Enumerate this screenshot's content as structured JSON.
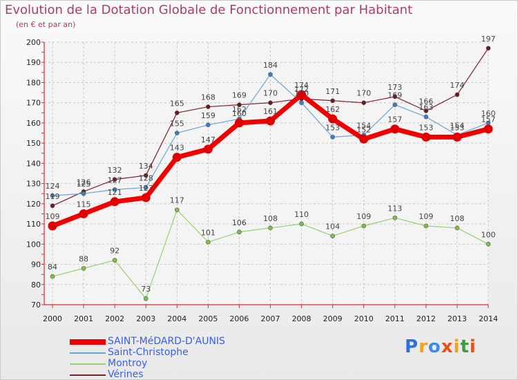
{
  "header": {
    "title": "Evolution de la Dotation Globale de Fonctionnement par Habitant",
    "subtitle": "(en € et par an)"
  },
  "logo": {
    "text": "Proxiti",
    "colors": [
      "#2f6fe0",
      "#f2a11d",
      "#3a8ee8",
      "#e8501e",
      "#f2a11d",
      "#3a9e3a",
      "#e8501e"
    ]
  },
  "chart_data": {
    "type": "line",
    "x": [
      "2000",
      "2001",
      "2002",
      "2003",
      "2004",
      "2005",
      "2006",
      "2007",
      "2008",
      "2009",
      "2010",
      "2011",
      "2012",
      "2013",
      "2014"
    ],
    "ylim": [
      70,
      200
    ],
    "yticks": [
      70,
      80,
      90,
      100,
      110,
      120,
      130,
      140,
      150,
      160,
      170,
      180,
      190,
      200
    ],
    "grid": true,
    "series": [
      {
        "name": "Vérines",
        "color": "#7a1f2b",
        "marker": "#6b1820",
        "width": 1.2,
        "values": [
          119,
          126,
          132,
          134,
          165,
          168,
          169,
          170,
          172,
          171,
          170,
          173,
          166,
          174,
          197
        ]
      },
      {
        "name": "Saint-Christophe",
        "color": "#6aa6d8",
        "marker": "#3a80c8",
        "width": 1.2,
        "values": [
          124,
          125,
          127,
          128,
          155,
          159,
          162,
          184,
          170,
          153,
          154,
          169,
          163,
          154,
          160
        ]
      },
      {
        "name": "Montroy",
        "color": "#98d06a",
        "marker": "#7cc244",
        "width": 1.2,
        "values": [
          84,
          88,
          92,
          73,
          117,
          101,
          106,
          108,
          110,
          104,
          109,
          113,
          109,
          108,
          100
        ]
      },
      {
        "name": "SAINT-MéDARD-D'AUNIS",
        "color": "#f00000",
        "marker": "#e00000",
        "width": 7,
        "values": [
          109,
          115,
          121,
          123,
          143,
          147,
          160,
          161,
          174,
          162,
          152,
          157,
          153,
          153,
          157
        ]
      }
    ],
    "legend": [
      "SAINT-MéDARD-D'AUNIS",
      "Saint-Christophe",
      "Montroy",
      "Vérines"
    ],
    "legend_position": "bottom-left"
  }
}
